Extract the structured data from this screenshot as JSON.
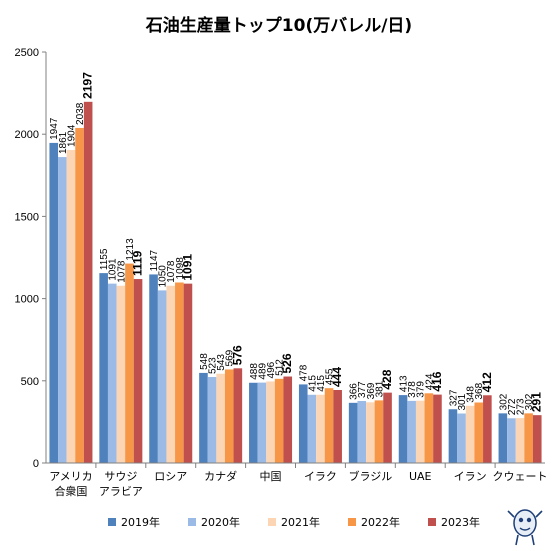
{
  "chart_data": {
    "type": "bar",
    "title": "石油生産量トップ10(万バレル/日)",
    "categories": [
      [
        "アメリカ",
        "合衆国"
      ],
      [
        "サウジ",
        "アラビア"
      ],
      [
        "ロシア"
      ],
      [
        "カナダ"
      ],
      [
        "中国"
      ],
      [
        "イラク"
      ],
      [
        "ブラジル"
      ],
      [
        "UAE"
      ],
      [
        "イラン"
      ],
      [
        "クウェート"
      ]
    ],
    "series": [
      {
        "name": "2019年",
        "color": "#4f81bd",
        "values": [
          1947,
          1155,
          1147,
          548,
          488,
          478,
          366,
          413,
          327,
          302
        ]
      },
      {
        "name": "2020年",
        "color": "#9bbbe6",
        "values": [
          1861,
          1091,
          1050,
          523,
          489,
          415,
          377,
          378,
          301,
          272
        ]
      },
      {
        "name": "2021年",
        "color": "#fcd5b4",
        "values": [
          1904,
          1078,
          1078,
          543,
          496,
          415,
          369,
          379,
          348,
          273
        ]
      },
      {
        "name": "2022年",
        "color": "#f79646",
        "values": [
          2038,
          1213,
          1098,
          569,
          512,
          455,
          381,
          424,
          368,
          302
        ]
      },
      {
        "name": "2023年",
        "color": "#c0504d",
        "values": [
          2197,
          1119,
          1091,
          576,
          526,
          444,
          428,
          416,
          412,
          291
        ]
      }
    ],
    "ylim": [
      0,
      2500
    ],
    "yticks": [
      0,
      500,
      1000,
      1500,
      2000,
      2500
    ],
    "xlabel": "",
    "ylabel": "",
    "grid": false,
    "legend": "bottom"
  }
}
